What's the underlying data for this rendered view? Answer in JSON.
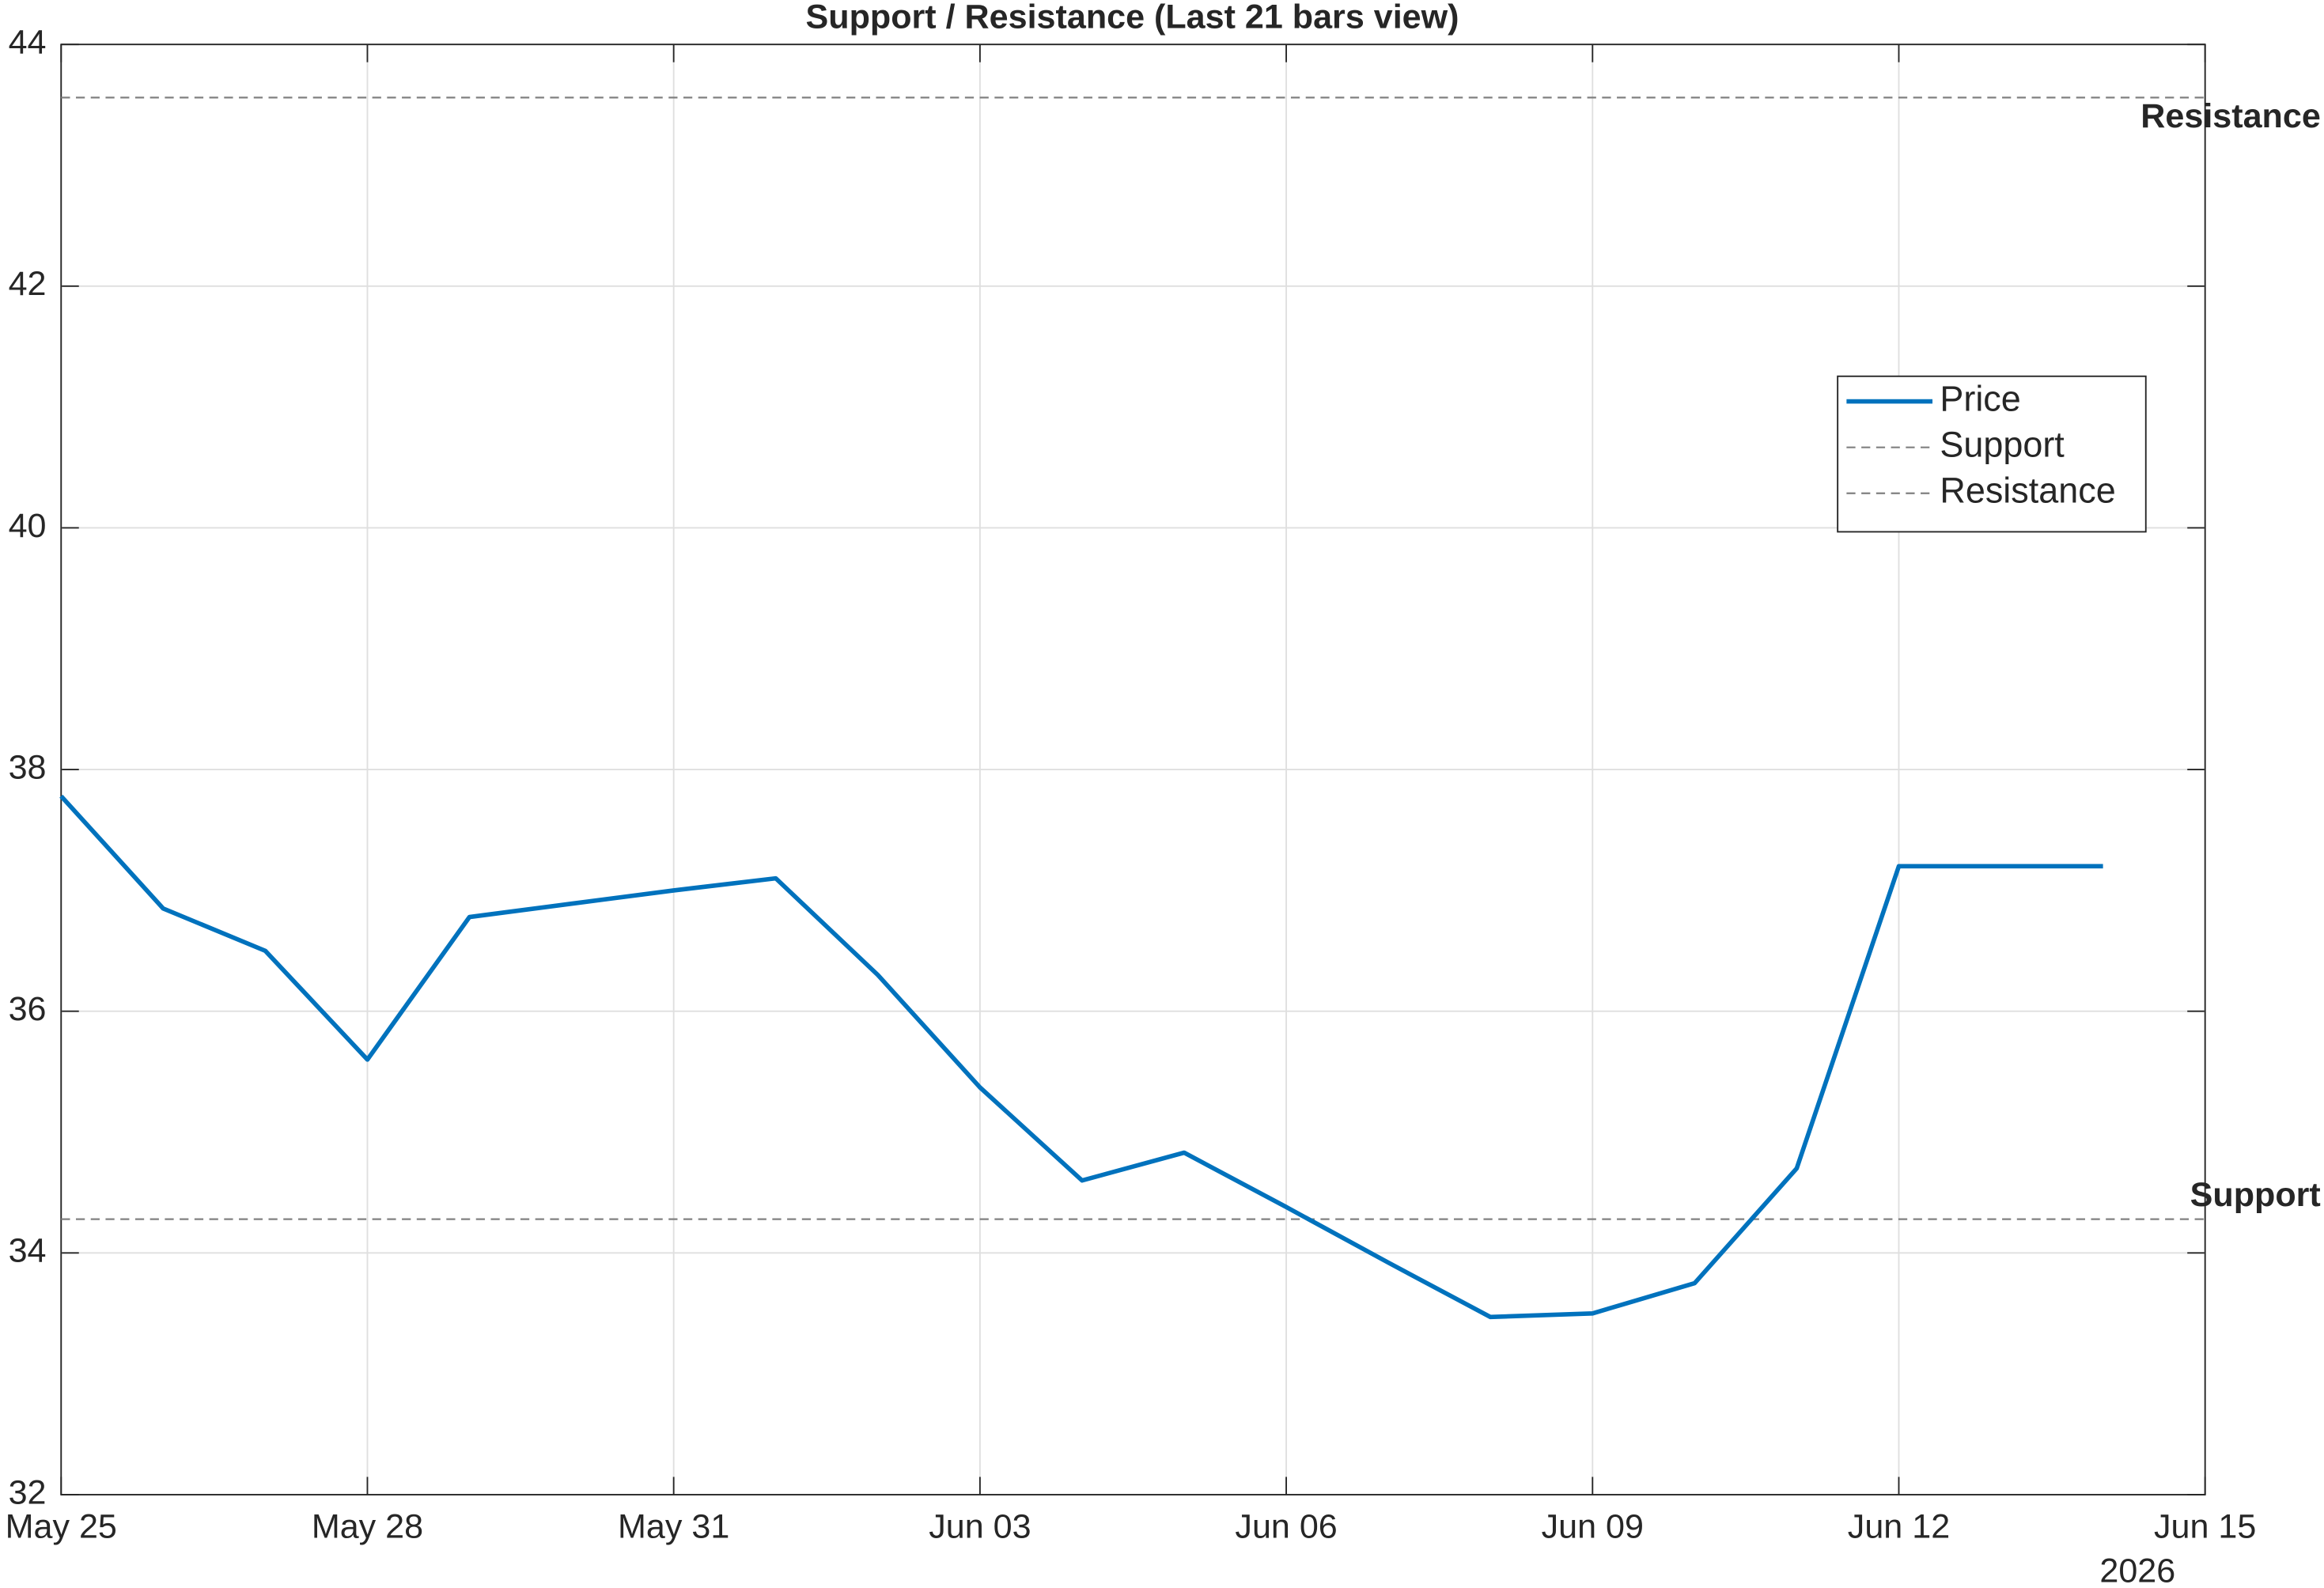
{
  "chart_data": {
    "type": "line",
    "title": "Support / Resistance (Last 21 bars view)",
    "x": [
      "2026-05-25",
      "2026-05-26",
      "2026-05-27",
      "2026-05-28",
      "2026-05-29",
      "2026-05-30",
      "2026-05-31",
      "2026-06-01",
      "2026-06-02",
      "2026-06-03",
      "2026-06-04",
      "2026-06-05",
      "2026-06-06",
      "2026-06-07",
      "2026-06-08",
      "2026-06-09",
      "2026-06-10",
      "2026-06-11",
      "2026-06-12",
      "2026-06-13",
      "2026-06-14"
    ],
    "series": [
      {
        "name": "Price",
        "color": "#0072bd",
        "values": [
          37.78,
          36.85,
          36.5,
          35.6,
          36.78,
          36.89,
          37.0,
          37.1,
          36.3,
          35.37,
          34.6,
          34.83,
          34.38,
          33.92,
          33.47,
          33.5,
          33.75,
          34.7,
          37.2,
          37.2,
          37.2
        ]
      }
    ],
    "reference_lines": [
      {
        "name": "Support",
        "label": "Support",
        "value": 34.28,
        "color": "#808080"
      },
      {
        "name": "Resistance",
        "label": "Resistance",
        "value": 43.56,
        "color": "#808080"
      }
    ],
    "xlim": [
      "2026-05-25",
      "2026-06-15"
    ],
    "xticks": [
      {
        "value": "2026-05-25",
        "label": "May 25"
      },
      {
        "value": "2026-05-28",
        "label": "May 28"
      },
      {
        "value": "2026-05-31",
        "label": "May 31"
      },
      {
        "value": "2026-06-03",
        "label": "Jun 03"
      },
      {
        "value": "2026-06-06",
        "label": "Jun 06"
      },
      {
        "value": "2026-06-09",
        "label": "Jun 09"
      },
      {
        "value": "2026-06-12",
        "label": "Jun 12"
      },
      {
        "value": "2026-06-15",
        "label": "Jun 15"
      }
    ],
    "x_year_label": "2026",
    "ylim": [
      32,
      44
    ],
    "yticks": [
      32,
      34,
      36,
      38,
      40,
      42,
      44
    ],
    "grid": true,
    "legend": "upper right"
  }
}
